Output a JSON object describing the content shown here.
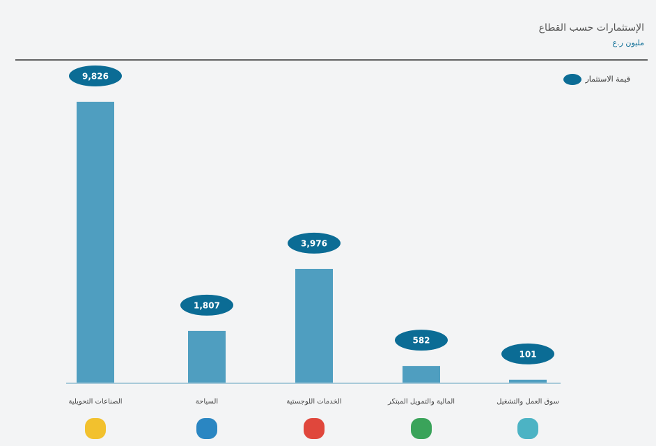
{
  "chart_data": {
    "type": "bar",
    "title": "الإستثمارات حسب القطاع",
    "subtitle": "مليون ر.ع",
    "categories": [
      "الصناعات التحويلية",
      "السياحة",
      "الخدمات اللوجستية",
      "المالية والتمويل المبتكر",
      "سوق العمل والتشغيل"
    ],
    "series": [
      {
        "name": "قيمة الاستثمار",
        "color": "#4f9ec0",
        "values": [
          9826,
          1807,
          3976,
          582,
          101
        ],
        "value_labels": [
          "9,826",
          "1,807",
          "3,976",
          "582",
          "101"
        ]
      }
    ],
    "label_color": "#0b6c95",
    "legend": "top-right"
  }
}
